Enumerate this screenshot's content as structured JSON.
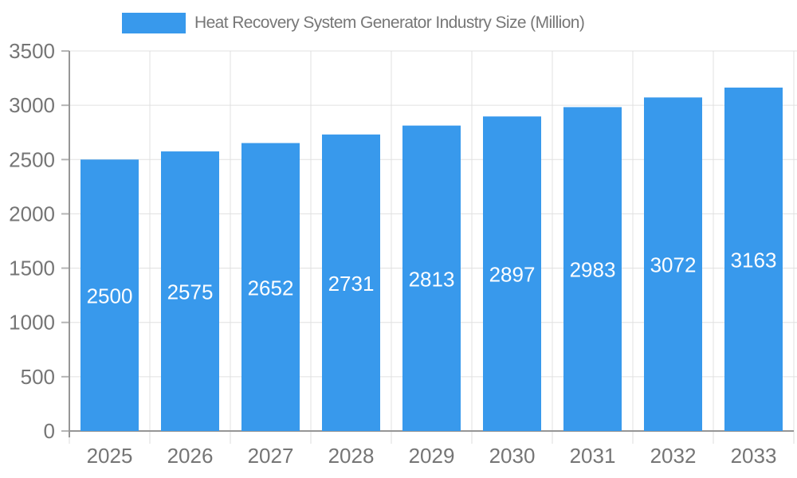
{
  "chart_data": {
    "type": "bar",
    "title": "Heat Recovery System Generator Industry Size (Million)",
    "legend_position": "top",
    "legend": {
      "label": "Heat Recovery System Generator Industry Size (Million)"
    },
    "categories": [
      "2025",
      "2026",
      "2027",
      "2028",
      "2029",
      "2030",
      "2031",
      "2032",
      "2033"
    ],
    "series": [
      {
        "name": "Heat Recovery System Generator Industry Size (Million)",
        "values": [
          2500,
          2575,
          2652,
          2731,
          2813,
          2897,
          2983,
          3072,
          3163
        ]
      }
    ],
    "xlabel": "",
    "ylabel": "",
    "ylim": [
      0,
      3500
    ],
    "yticks": [
      0,
      500,
      1000,
      1500,
      2000,
      2500,
      3000,
      3500
    ],
    "grid": true,
    "value_labels": "inside-center",
    "colors": {
      "bar": "#3899EC",
      "value_label": "#FFFFFF",
      "axis_label": "#757575",
      "title": "#777777",
      "gridline": "#E0E0E0",
      "axis_line": "#969696",
      "y_tick": "#B5B5B5",
      "x_tick": "#DCDCDC",
      "background": "#FFFFFF"
    }
  }
}
